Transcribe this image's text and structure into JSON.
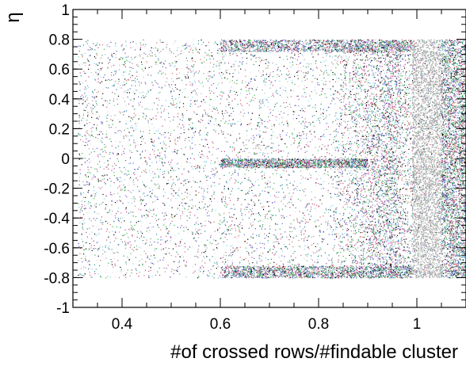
{
  "chart_data": {
    "type": "scatter",
    "title": "",
    "xlabel": "#of crossed rows/#findable cluster",
    "ylabel": "η",
    "xlim": [
      0.3,
      1.1
    ],
    "ylim": [
      -1,
      1
    ],
    "x_ticks": [
      {
        "value": 0.4,
        "label": "0.4"
      },
      {
        "value": 0.6,
        "label": "0.6"
      },
      {
        "value": 0.8,
        "label": "0.8"
      },
      {
        "value": 1.0,
        "label": "1"
      }
    ],
    "y_ticks": [
      {
        "value": -1.0,
        "label": "-1"
      },
      {
        "value": -0.8,
        "label": "-0.8"
      },
      {
        "value": -0.6,
        "label": "-0.6"
      },
      {
        "value": -0.4,
        "label": "-0.4"
      },
      {
        "value": -0.2,
        "label": "-0.2"
      },
      {
        "value": 0.0,
        "label": "0"
      },
      {
        "value": 0.2,
        "label": "0.2"
      },
      {
        "value": 0.4,
        "label": "0.4"
      },
      {
        "value": 0.6,
        "label": "0.6"
      },
      {
        "value": 0.8,
        "label": "0.8"
      },
      {
        "value": 1.0,
        "label": "1"
      }
    ],
    "grid": false,
    "legend": "none",
    "point_colors": [
      "#000000",
      "#2b8a8a",
      "#3cb44b",
      "#5b5bd6",
      "#c0408f",
      "#7fd1e8",
      "#9e9e9e",
      "#e0e0e0",
      "#d46a6a"
    ],
    "density_regions": [
      {
        "x_range": [
          0.31,
          1.1
        ],
        "eta_range": [
          -0.8,
          0.8
        ],
        "density": "sparse",
        "note": "uniform scattered points"
      },
      {
        "x_range": [
          0.82,
          1.0
        ],
        "eta_range": [
          -0.8,
          0.8
        ],
        "density": "dense",
        "peak_x": 0.95
      },
      {
        "x_range": [
          0.6,
          0.99
        ],
        "eta_range": [
          0.72,
          0.8
        ],
        "density": "medium"
      },
      {
        "x_range": [
          0.6,
          0.99
        ],
        "eta_range": [
          -0.8,
          -0.72
        ],
        "density": "medium"
      },
      {
        "x_range": [
          0.6,
          0.9
        ],
        "eta_range": [
          -0.06,
          0.0
        ],
        "density": "medium"
      },
      {
        "x_range": [
          0.99,
          1.05
        ],
        "eta_range": [
          -0.8,
          0.8
        ],
        "density": "very dense",
        "color": "#a8a8a8"
      },
      {
        "x_range": [
          1.05,
          1.1
        ],
        "eta_range": [
          -0.8,
          0.8
        ],
        "density": "dense"
      }
    ]
  }
}
